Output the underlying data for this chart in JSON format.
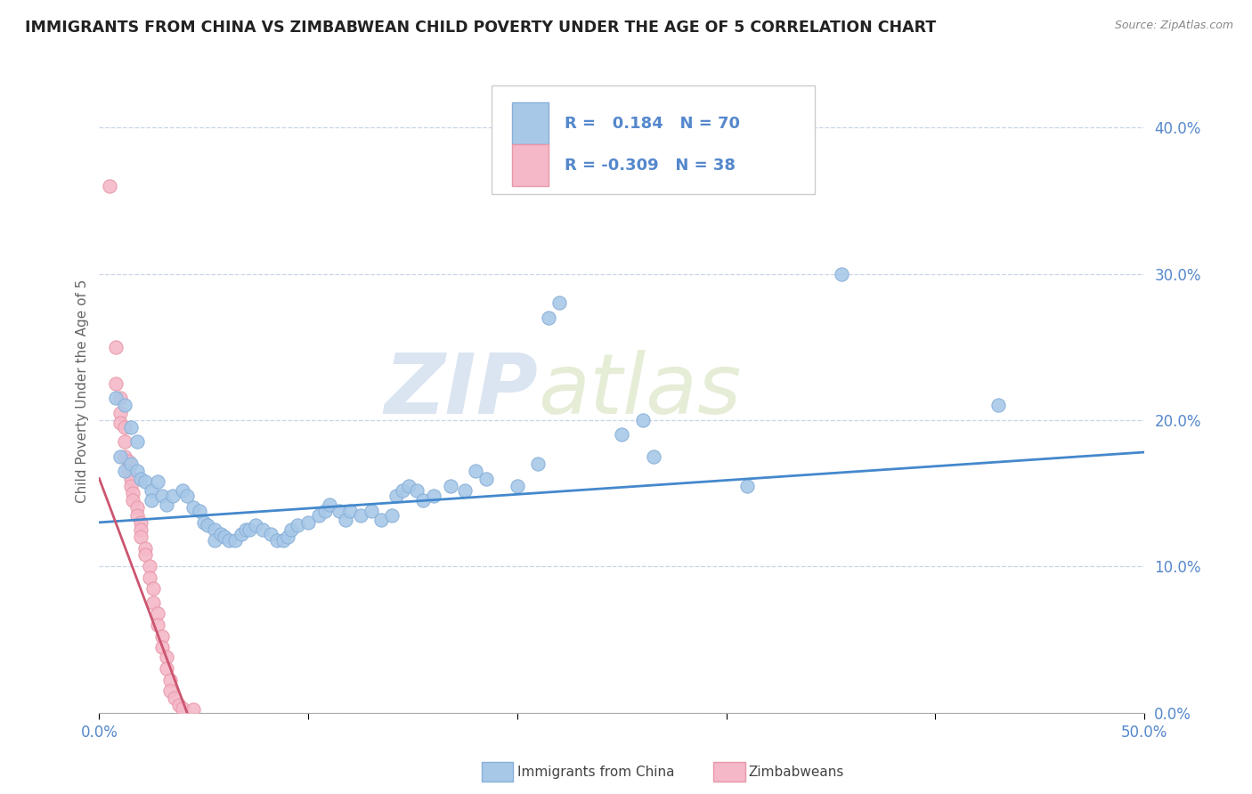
{
  "title": "IMMIGRANTS FROM CHINA VS ZIMBABWEAN CHILD POVERTY UNDER THE AGE OF 5 CORRELATION CHART",
  "source": "Source: ZipAtlas.com",
  "ylabel": "Child Poverty Under the Age of 5",
  "yticks": [
    "0.0%",
    "10.0%",
    "20.0%",
    "30.0%",
    "40.0%"
  ],
  "ytick_vals": [
    0.0,
    0.1,
    0.2,
    0.3,
    0.4
  ],
  "xtick_vals": [
    0.0,
    0.1,
    0.2,
    0.3,
    0.4,
    0.5
  ],
  "xtick_labels": [
    "0.0%",
    "",
    "",
    "",
    "",
    "50.0%"
  ],
  "xlim": [
    0.0,
    0.5
  ],
  "ylim": [
    0.0,
    0.44
  ],
  "legend1_r": "0.184",
  "legend1_n": "70",
  "legend2_r": "-0.309",
  "legend2_n": "38",
  "china_color": "#a8c8e8",
  "china_edge_color": "#88b0d8",
  "zimbabwe_color": "#f4b8c8",
  "zimbabwe_edge_color": "#e898a8",
  "china_line_color": "#4488cc",
  "zimbabwe_line_color": "#cc5570",
  "china_scatter": [
    [
      0.008,
      0.215
    ],
    [
      0.012,
      0.21
    ],
    [
      0.015,
      0.195
    ],
    [
      0.018,
      0.185
    ],
    [
      0.01,
      0.175
    ],
    [
      0.012,
      0.165
    ],
    [
      0.015,
      0.17
    ],
    [
      0.018,
      0.165
    ],
    [
      0.02,
      0.16
    ],
    [
      0.022,
      0.158
    ],
    [
      0.025,
      0.152
    ],
    [
      0.025,
      0.145
    ],
    [
      0.028,
      0.158
    ],
    [
      0.03,
      0.148
    ],
    [
      0.032,
      0.142
    ],
    [
      0.035,
      0.148
    ],
    [
      0.04,
      0.152
    ],
    [
      0.042,
      0.148
    ],
    [
      0.045,
      0.14
    ],
    [
      0.048,
      0.138
    ],
    [
      0.05,
      0.13
    ],
    [
      0.052,
      0.128
    ],
    [
      0.055,
      0.125
    ],
    [
      0.055,
      0.118
    ],
    [
      0.058,
      0.122
    ],
    [
      0.06,
      0.12
    ],
    [
      0.062,
      0.118
    ],
    [
      0.065,
      0.118
    ],
    [
      0.068,
      0.122
    ],
    [
      0.07,
      0.125
    ],
    [
      0.072,
      0.125
    ],
    [
      0.075,
      0.128
    ],
    [
      0.078,
      0.125
    ],
    [
      0.082,
      0.122
    ],
    [
      0.085,
      0.118
    ],
    [
      0.088,
      0.118
    ],
    [
      0.09,
      0.12
    ],
    [
      0.092,
      0.125
    ],
    [
      0.095,
      0.128
    ],
    [
      0.1,
      0.13
    ],
    [
      0.105,
      0.135
    ],
    [
      0.108,
      0.138
    ],
    [
      0.11,
      0.142
    ],
    [
      0.115,
      0.138
    ],
    [
      0.118,
      0.132
    ],
    [
      0.12,
      0.138
    ],
    [
      0.125,
      0.135
    ],
    [
      0.13,
      0.138
    ],
    [
      0.135,
      0.132
    ],
    [
      0.14,
      0.135
    ],
    [
      0.142,
      0.148
    ],
    [
      0.145,
      0.152
    ],
    [
      0.148,
      0.155
    ],
    [
      0.152,
      0.152
    ],
    [
      0.155,
      0.145
    ],
    [
      0.16,
      0.148
    ],
    [
      0.168,
      0.155
    ],
    [
      0.175,
      0.152
    ],
    [
      0.18,
      0.165
    ],
    [
      0.185,
      0.16
    ],
    [
      0.2,
      0.155
    ],
    [
      0.21,
      0.17
    ],
    [
      0.215,
      0.27
    ],
    [
      0.22,
      0.28
    ],
    [
      0.25,
      0.19
    ],
    [
      0.26,
      0.2
    ],
    [
      0.265,
      0.175
    ],
    [
      0.31,
      0.155
    ],
    [
      0.355,
      0.3
    ],
    [
      0.43,
      0.21
    ]
  ],
  "zimbabwe_scatter": [
    [
      0.005,
      0.36
    ],
    [
      0.008,
      0.25
    ],
    [
      0.008,
      0.225
    ],
    [
      0.01,
      0.215
    ],
    [
      0.01,
      0.205
    ],
    [
      0.01,
      0.198
    ],
    [
      0.012,
      0.195
    ],
    [
      0.012,
      0.185
    ],
    [
      0.012,
      0.175
    ],
    [
      0.014,
      0.172
    ],
    [
      0.014,
      0.165
    ],
    [
      0.015,
      0.16
    ],
    [
      0.015,
      0.155
    ],
    [
      0.016,
      0.15
    ],
    [
      0.016,
      0.145
    ],
    [
      0.018,
      0.14
    ],
    [
      0.018,
      0.135
    ],
    [
      0.02,
      0.13
    ],
    [
      0.02,
      0.125
    ],
    [
      0.02,
      0.12
    ],
    [
      0.022,
      0.112
    ],
    [
      0.022,
      0.108
    ],
    [
      0.024,
      0.1
    ],
    [
      0.024,
      0.092
    ],
    [
      0.026,
      0.085
    ],
    [
      0.026,
      0.075
    ],
    [
      0.028,
      0.068
    ],
    [
      0.028,
      0.06
    ],
    [
      0.03,
      0.052
    ],
    [
      0.03,
      0.045
    ],
    [
      0.032,
      0.038
    ],
    [
      0.032,
      0.03
    ],
    [
      0.034,
      0.022
    ],
    [
      0.034,
      0.015
    ],
    [
      0.036,
      0.01
    ],
    [
      0.038,
      0.005
    ],
    [
      0.04,
      0.003
    ],
    [
      0.045,
      0.002
    ]
  ],
  "china_trend_x": [
    0.0,
    0.5
  ],
  "china_trend_y": [
    0.13,
    0.178
  ],
  "zimbabwe_trend_x": [
    0.0,
    0.042
  ],
  "zimbabwe_trend_y": [
    0.16,
    0.0
  ],
  "watermark_zip": "ZIP",
  "watermark_atlas": "atlas",
  "background_color": "#ffffff",
  "grid_color": "#c8d4e8",
  "title_color": "#222222",
  "axis_label_color": "#5588cc",
  "right_tick_color": "#5588cc"
}
